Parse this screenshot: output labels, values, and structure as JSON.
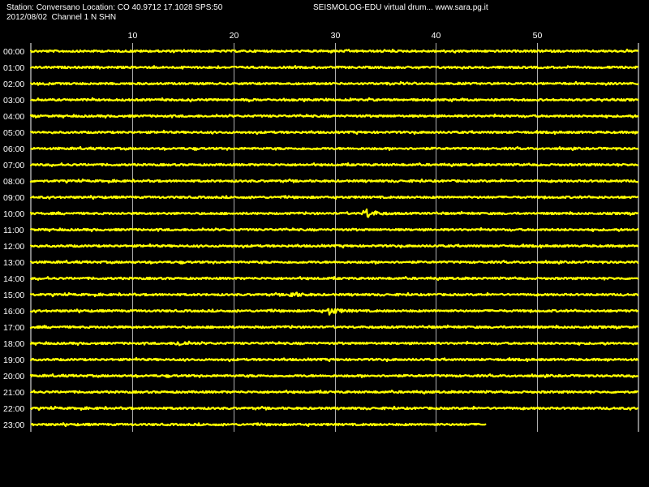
{
  "header": {
    "station_line": "Station: Conversano Location: CO 40.9712 17.1028 SPS:50",
    "date_line": "2012/08/02  Channel 1 N SHN",
    "brand_line": "SEISMOLOG-EDU virtual drum... www.sara.pg.it"
  },
  "colors": {
    "background": "#000000",
    "trace": "#ffff00",
    "grid": "#ffffff",
    "text": "#ffffff"
  },
  "chart_data": {
    "type": "line",
    "title": "",
    "xlabel": "",
    "ylabel": "",
    "xlim": [
      0,
      60
    ],
    "x_ticks": [
      10,
      20,
      30,
      40,
      50
    ],
    "grid": true,
    "rows": [
      {
        "label": "00:00",
        "end": 60,
        "events": []
      },
      {
        "label": "01:00",
        "end": 60,
        "events": []
      },
      {
        "label": "02:00",
        "end": 60,
        "events": []
      },
      {
        "label": "03:00",
        "end": 60,
        "events": []
      },
      {
        "label": "04:00",
        "end": 60,
        "events": []
      },
      {
        "label": "05:00",
        "end": 60,
        "events": []
      },
      {
        "label": "06:00",
        "end": 60,
        "events": []
      },
      {
        "label": "07:00",
        "end": 60,
        "events": []
      },
      {
        "label": "08:00",
        "end": 60,
        "events": []
      },
      {
        "label": "09:00",
        "end": 60,
        "events": []
      },
      {
        "label": "10:00",
        "end": 60,
        "events": [
          {
            "minute": 33,
            "amp": 3.0
          }
        ]
      },
      {
        "label": "11:00",
        "end": 60,
        "events": []
      },
      {
        "label": "12:00",
        "end": 60,
        "events": []
      },
      {
        "label": "13:00",
        "end": 60,
        "events": []
      },
      {
        "label": "14:00",
        "end": 60,
        "events": []
      },
      {
        "label": "15:00",
        "end": 60,
        "events": [
          {
            "minute": 25.7,
            "amp": 1.6
          }
        ]
      },
      {
        "label": "16:00",
        "end": 60,
        "events": [
          {
            "minute": 29.5,
            "amp": 2.0
          }
        ]
      },
      {
        "label": "17:00",
        "end": 60,
        "events": []
      },
      {
        "label": "18:00",
        "end": 60,
        "events": [
          {
            "minute": 14.5,
            "amp": 1.4
          }
        ]
      },
      {
        "label": "19:00",
        "end": 60,
        "events": []
      },
      {
        "label": "20:00",
        "end": 60,
        "events": []
      },
      {
        "label": "21:00",
        "end": 60,
        "events": []
      },
      {
        "label": "22:00",
        "end": 60,
        "events": []
      },
      {
        "label": "23:00",
        "end": 45,
        "events": []
      }
    ]
  }
}
